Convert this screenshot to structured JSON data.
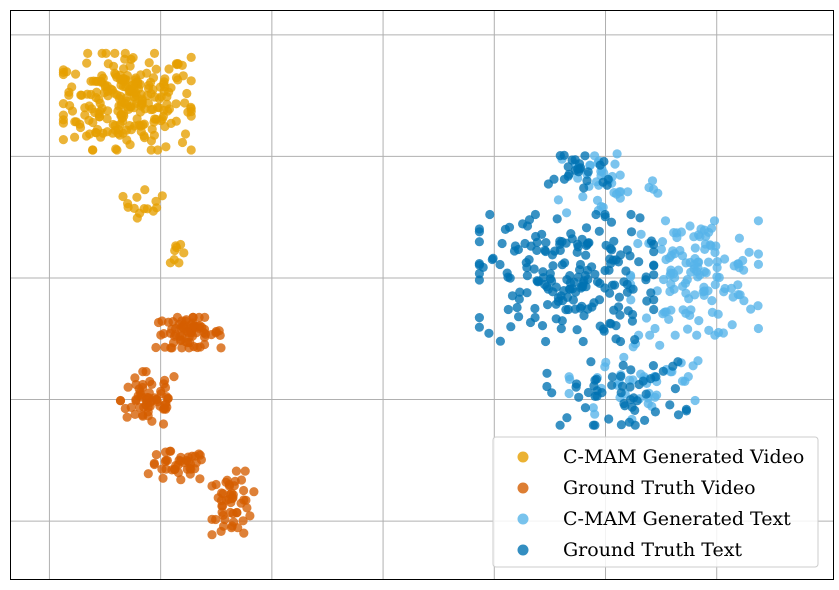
{
  "chart_data": {
    "type": "scatter",
    "title": "",
    "xlabel": "",
    "ylabel": "",
    "xlim": [
      -1.05,
      6.35
    ],
    "ylim": [
      -4.48,
      0.2
    ],
    "grid": true,
    "xticks": [
      -0.7,
      0.3,
      1.3,
      2.3,
      3.3,
      4.3,
      5.3
    ],
    "yticks": [
      -4.0,
      -3.0,
      -2.0,
      -1.0,
      0.0
    ],
    "legend": "bottom-right",
    "series": [
      {
        "name": "C-MAM Generated Video",
        "color": "#E69F00",
        "clusters": [
          {
            "center": [
              0.0,
              -0.55
            ],
            "spread": [
              0.55,
              0.38
            ],
            "count": 240
          },
          {
            "center": [
              0.15,
              -1.35
            ],
            "spread": [
              0.18,
              0.15
            ],
            "count": 14
          },
          {
            "center": [
              0.45,
              -1.85
            ],
            "spread": [
              0.06,
              0.12
            ],
            "count": 8
          }
        ]
      },
      {
        "name": "Ground Truth Video",
        "color": "#D55E00",
        "clusters": [
          {
            "center": [
              0.55,
              -2.45
            ],
            "spread": [
              0.28,
              0.12
            ],
            "count": 70
          },
          {
            "center": [
              0.2,
              -3.0
            ],
            "spread": [
              0.25,
              0.22
            ],
            "count": 60
          },
          {
            "center": [
              0.45,
              -3.55
            ],
            "spread": [
              0.25,
              0.12
            ],
            "count": 40
          },
          {
            "center": [
              0.95,
              -3.85
            ],
            "spread": [
              0.18,
              0.25
            ],
            "count": 50
          }
        ]
      },
      {
        "name": "C-MAM Generated Text",
        "color": "#56B4E9",
        "clusters": [
          {
            "center": [
              5.1,
              -2.0
            ],
            "spread": [
              0.55,
              0.45
            ],
            "count": 130
          },
          {
            "center": [
              4.3,
              -1.2
            ],
            "spread": [
              0.45,
              0.3
            ],
            "count": 40
          },
          {
            "center": [
              4.6,
              -2.85
            ],
            "spread": [
              0.6,
              0.3
            ],
            "count": 45
          }
        ]
      },
      {
        "name": "Ground Truth Text",
        "color": "#0072B2",
        "clusters": [
          {
            "center": [
              3.95,
              -2.0
            ],
            "spread": [
              0.75,
              0.5
            ],
            "count": 200
          },
          {
            "center": [
              4.1,
              -1.1
            ],
            "spread": [
              0.3,
              0.18
            ],
            "count": 25
          },
          {
            "center": [
              4.4,
              -2.95
            ],
            "spread": [
              0.6,
              0.25
            ],
            "count": 55
          }
        ]
      }
    ]
  }
}
